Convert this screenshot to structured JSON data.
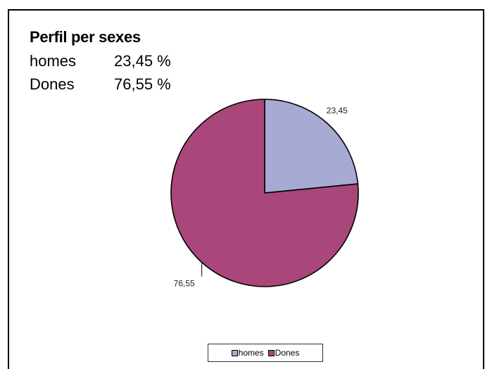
{
  "header": {
    "title": "Perfil per sexes",
    "rows": [
      {
        "label": "homes",
        "value": "23,45 %"
      },
      {
        "label": "Dones",
        "value": "76,55 %"
      }
    ]
  },
  "chart_data": {
    "type": "pie",
    "categories": [
      "homes",
      "Dones"
    ],
    "values": [
      23.45,
      76.55
    ],
    "data_labels": [
      "23,45",
      "76,55"
    ],
    "colors": [
      "#a7aad3",
      "#a9467a"
    ],
    "legend_position": "bottom",
    "start_angle": "top, clockwise"
  }
}
